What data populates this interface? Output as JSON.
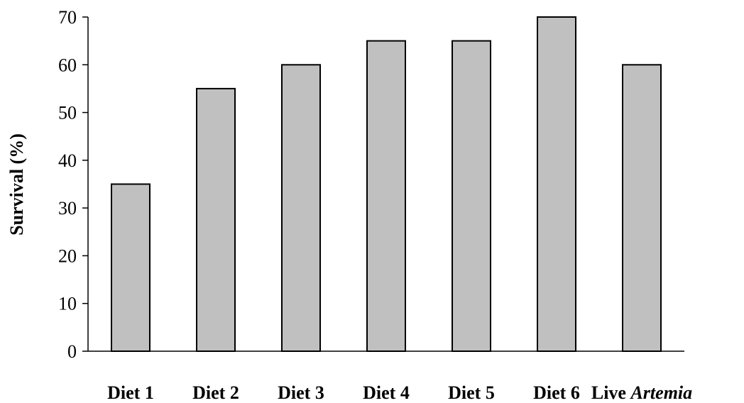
{
  "chart_data": {
    "type": "bar",
    "categories": [
      {
        "text": "Diet 1",
        "italic": ""
      },
      {
        "text": "Diet 2",
        "italic": ""
      },
      {
        "text": "Diet 3",
        "italic": ""
      },
      {
        "text": "Diet 4",
        "italic": ""
      },
      {
        "text": "Diet 5",
        "italic": ""
      },
      {
        "text": "Diet 6",
        "italic": ""
      },
      {
        "text": "Live ",
        "italic": "Artemia"
      }
    ],
    "values": [
      35,
      55,
      60,
      65,
      65,
      70,
      60
    ],
    "title": "",
    "xlabel": "",
    "ylabel": "Survival (%)",
    "ylim": [
      0,
      70
    ],
    "yticks": [
      0,
      10,
      20,
      30,
      40,
      50,
      60,
      70
    ],
    "grid": false,
    "legend": "none",
    "bar_color": "#c0c0c0",
    "bar_edge_color": "#000000"
  }
}
